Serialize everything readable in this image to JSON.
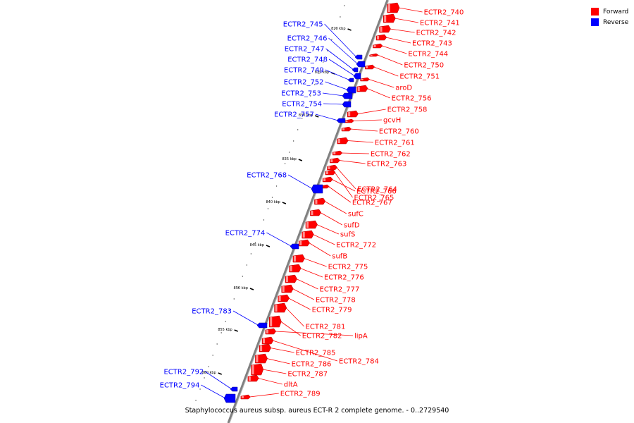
{
  "caption": "Staphylococcus aureus subsp. aureus ECT-R 2 complete genome. - 0..2729540",
  "legend": [
    {
      "label": "Forward",
      "color": "#ff0000"
    },
    {
      "label": "Reverse",
      "color": "#0000ff"
    }
  ],
  "colors": {
    "forward": "#ff0000",
    "reverse": "#0000ff",
    "backbone": "#808080"
  },
  "ticks": [
    "820 kbp",
    "825 kbp",
    "830 kbp",
    "835 kbp",
    "840 kbp",
    "845 kbp",
    "850 kbp",
    "855 kbp",
    "860 kbp"
  ],
  "genes_forward": [
    "ECTR2_740",
    "ECTR2_741",
    "ECTR2_742",
    "ECTR2_743",
    "ECTR2_744",
    "ECTR2_750",
    "ECTR2_751",
    "aroD",
    "ECTR2_756",
    "ECTR2_758",
    "gcvH",
    "ECTR2_760",
    "ECTR2_761",
    "ECTR2_762",
    "ECTR2_763",
    "ECTR2_764",
    "ECTR2_765",
    "ECTR2_766",
    "ECTR2_767",
    "sufC",
    "sufD",
    "sufS",
    "ECTR2_772",
    "sufB",
    "ECTR2_775",
    "ECTR2_776",
    "ECTR2_777",
    "ECTR2_778",
    "ECTR2_779",
    "ECTR2_781",
    "ECTR2_782",
    "lipA",
    "ECTR2_784",
    "ECTR2_785",
    "ECTR2_786",
    "ECTR2_787",
    "dltA",
    "ECTR2_789"
  ],
  "genes_reverse": [
    "ECTR2_745",
    "ECTR2_746",
    "ECTR2_747",
    "ECTR2_748",
    "ECTR2_749",
    "ECTR2_752",
    "ECTR2_753",
    "ECTR2_754",
    "ECTR2_757",
    "ECTR2_768",
    "ECTR2_774",
    "ECTR2_783",
    "ECTR2_792",
    "ECTR2_794"
  ]
}
